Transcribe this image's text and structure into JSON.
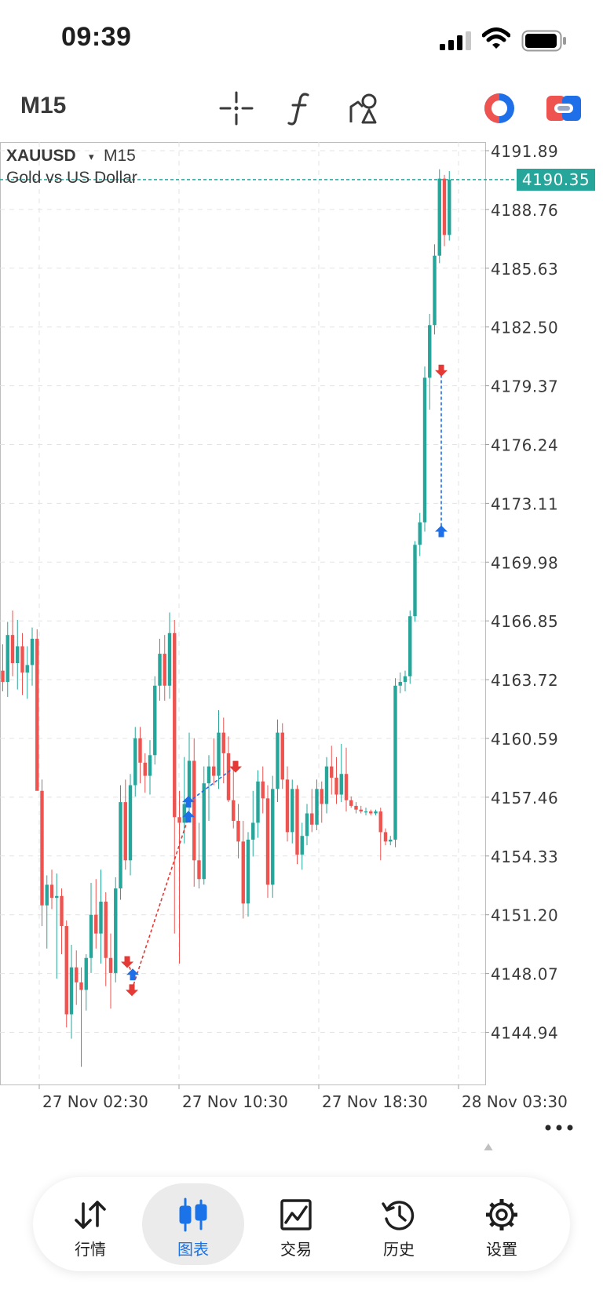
{
  "status_bar": {
    "time": "09:39"
  },
  "toolbar": {
    "timeframe": "M15",
    "icons": [
      "crosshair-icon",
      "function-icon",
      "drawing-objects-icon",
      "account-icon",
      "connection-toggle-icon"
    ]
  },
  "chart": {
    "symbol": "XAUUSD",
    "symbol_dropdown_glyph": "▾",
    "timeframe": "M15",
    "description": "Gold vs US Dollar",
    "current_price": "4190.35",
    "bull_color": "#26a69a",
    "bear_color": "#ef5350",
    "trade_arrow_buy_color": "#1e6fe8",
    "trade_arrow_sell_color": "#e53935"
  },
  "chart_data": {
    "type": "candlestick",
    "symbol": "XAUUSD",
    "timeframe": "M15",
    "y_ticks": [
      "4191.89",
      "4188.76",
      "4185.63",
      "4182.50",
      "4179.37",
      "4176.24",
      "4173.11",
      "4169.98",
      "4166.85",
      "4163.72",
      "4160.59",
      "4157.46",
      "4154.33",
      "4151.20",
      "4148.07",
      "4144.94"
    ],
    "x_ticks": [
      "27 Nov 02:30",
      "27 Nov 10:30",
      "27 Nov 18:30",
      "28 Nov 03:30"
    ],
    "ylim": [
      4141.0,
      4192.9
    ],
    "grid": true,
    "current_price": 4190.35,
    "trades": [
      {
        "side": "sell",
        "price": 4148.7
      },
      {
        "side": "buy",
        "price": 4148.0
      },
      {
        "side": "sell",
        "price": 4147.2
      },
      {
        "side": "buy",
        "price": 4156.4
      },
      {
        "side": "buy",
        "price": 4157.2
      },
      {
        "side": "sell",
        "price": 4159.1
      },
      {
        "side": "buy",
        "price": 4171.6
      },
      {
        "side": "sell",
        "price": 4180.2
      }
    ]
  },
  "bottom_nav": {
    "items": [
      {
        "label": "行情",
        "icon": "quotes-arrows-icon"
      },
      {
        "label": "图表",
        "icon": "chart-candles-icon",
        "active": true
      },
      {
        "label": "交易",
        "icon": "trade-chart-icon"
      },
      {
        "label": "历史",
        "icon": "history-clock-icon"
      },
      {
        "label": "设置",
        "icon": "settings-gear-icon"
      }
    ]
  }
}
